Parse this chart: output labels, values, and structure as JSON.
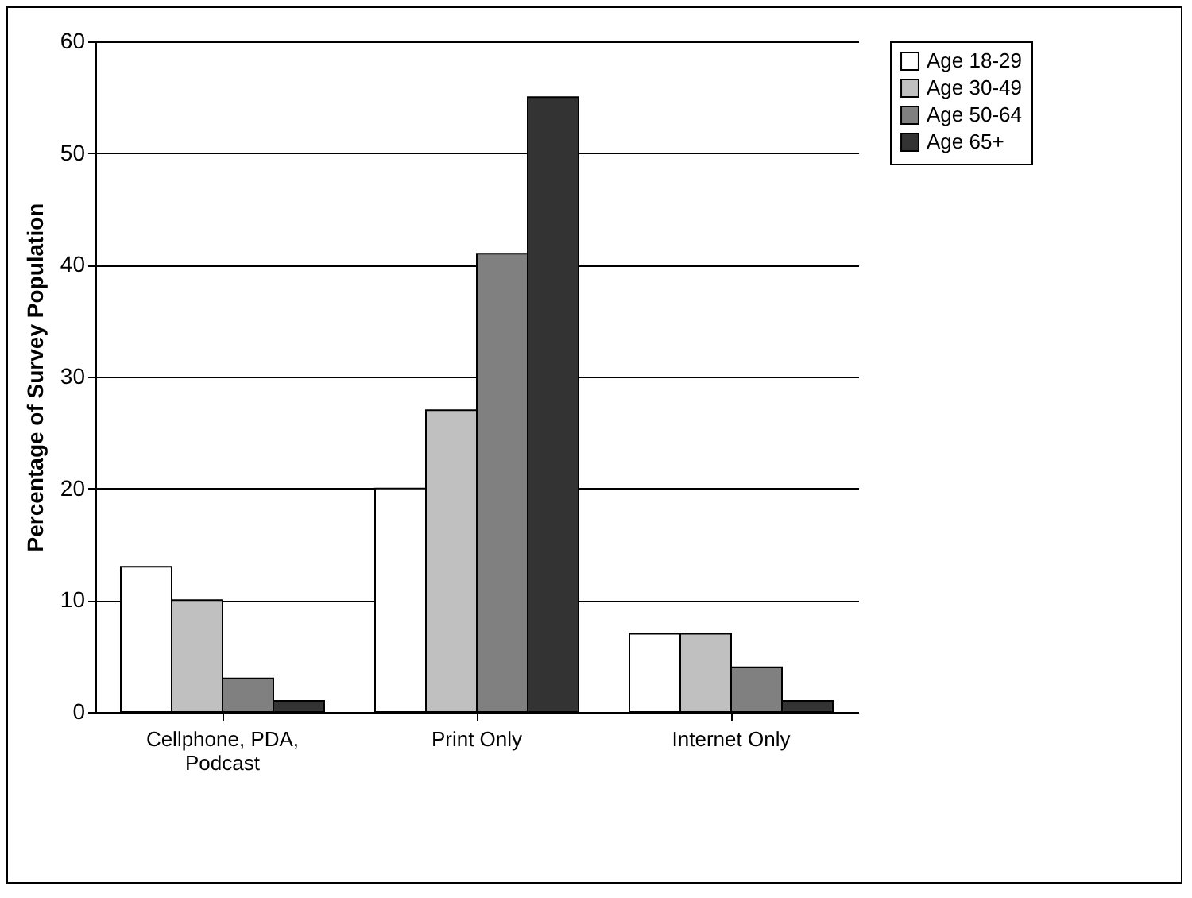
{
  "chart_data": {
    "type": "bar",
    "ylabel": "Percentage of Survey Population",
    "categories": [
      "Cellphone, PDA, Podcast",
      "Print Only",
      "Internet Only"
    ],
    "series": [
      {
        "name": "Age 18-29",
        "color": "#ffffff",
        "values": [
          13,
          20,
          7
        ]
      },
      {
        "name": "Age 30-49",
        "color": "#c0c0c0",
        "values": [
          10,
          27,
          7
        ]
      },
      {
        "name": "Age 50-64",
        "color": "#808080",
        "values": [
          3,
          41,
          4
        ]
      },
      {
        "name": "Age 65+",
        "color": "#333333",
        "values": [
          1,
          55,
          1
        ]
      }
    ],
    "ylim": [
      0,
      60
    ],
    "yticks": [
      0,
      10,
      20,
      30,
      40,
      50,
      60
    ],
    "grid": "y",
    "legend": "right"
  }
}
